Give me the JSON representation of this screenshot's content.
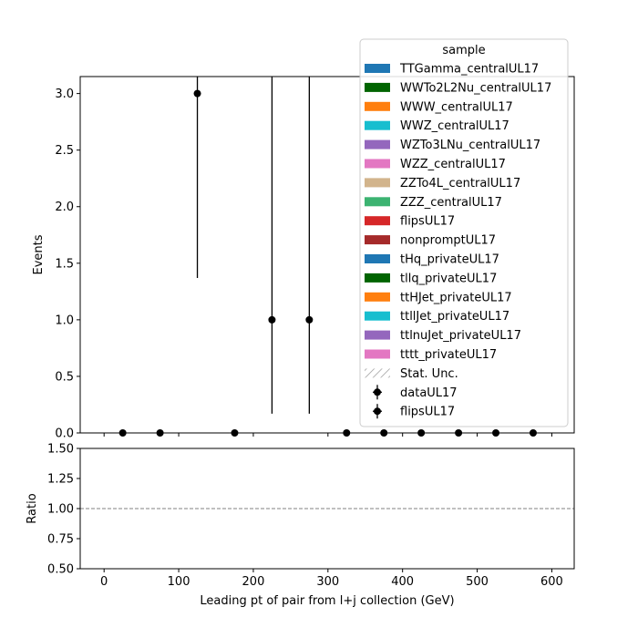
{
  "chart_data": [
    {
      "type": "scatter",
      "panel": "main",
      "xlabel": "",
      "ylabel": "Events",
      "xlim": [
        -32,
        630
      ],
      "ylim": [
        0,
        3.15
      ],
      "yticks": [
        0.0,
        0.5,
        1.0,
        1.5,
        2.0,
        2.5,
        3.0
      ],
      "ytick_labels": [
        "0.0",
        "0.5",
        "1.0",
        "1.5",
        "2.0",
        "2.5",
        "3.0"
      ],
      "xticks": [
        0,
        100,
        200,
        300,
        400,
        500,
        600
      ],
      "grid": false,
      "legend": {
        "title": "sample",
        "placement": "top-right",
        "entries": [
          {
            "label": "TTGamma_centralUL17",
            "kind": "patch",
            "color": "#1f77b4"
          },
          {
            "label": "WWTo2L2Nu_centralUL17",
            "kind": "patch",
            "color": "#006400"
          },
          {
            "label": "WWW_centralUL17",
            "kind": "patch",
            "color": "#ff7f0e"
          },
          {
            "label": "WWZ_centralUL17",
            "kind": "patch",
            "color": "#17becf"
          },
          {
            "label": "WZTo3LNu_centralUL17",
            "kind": "patch",
            "color": "#9467bd"
          },
          {
            "label": "WZZ_centralUL17",
            "kind": "patch",
            "color": "#e377c2"
          },
          {
            "label": "ZZTo4L_centralUL17",
            "kind": "patch",
            "color": "#d2b48c"
          },
          {
            "label": "ZZZ_centralUL17",
            "kind": "patch",
            "color": "#3cb371"
          },
          {
            "label": "flipsUL17",
            "kind": "patch",
            "color": "#d62728"
          },
          {
            "label": "nonpromptUL17",
            "kind": "patch",
            "color": "#a52a2a"
          },
          {
            "label": "tHq_privateUL17",
            "kind": "patch",
            "color": "#1f77b4"
          },
          {
            "label": "tllq_privateUL17",
            "kind": "patch",
            "color": "#006400"
          },
          {
            "label": "ttHJet_privateUL17",
            "kind": "patch",
            "color": "#ff7f0e"
          },
          {
            "label": "ttllJet_privateUL17",
            "kind": "patch",
            "color": "#17becf"
          },
          {
            "label": "ttlnuJet_privateUL17",
            "kind": "patch",
            "color": "#9467bd"
          },
          {
            "label": "tttt_privateUL17",
            "kind": "patch",
            "color": "#e377c2"
          },
          {
            "label": "Stat. Unc.",
            "kind": "hatch",
            "color": "#999999"
          },
          {
            "label": "dataUL17",
            "kind": "errorbar",
            "color": "#000000"
          },
          {
            "label": "flipsUL17",
            "kind": "errorbar",
            "color": "#000000"
          }
        ]
      },
      "series": [
        {
          "name": "dataUL17",
          "x": [
            25,
            75,
            125,
            175,
            225,
            275,
            325,
            375,
            425,
            475,
            525,
            575
          ],
          "y": [
            0,
            0,
            3,
            0,
            1,
            1,
            0,
            0,
            0,
            0,
            0,
            0
          ],
          "yerr_low": [
            0,
            0,
            1.63,
            0,
            0.83,
            0.83,
            0,
            0,
            0,
            0,
            0,
            0
          ],
          "yerr_high": [
            0,
            0,
            2.92,
            0,
            2.3,
            2.3,
            0,
            0,
            0,
            0,
            0,
            0
          ]
        }
      ]
    },
    {
      "type": "line",
      "panel": "ratio",
      "xlabel": "Leading pt of pair from l+j collection (GeV)",
      "ylabel": "Ratio",
      "xlim": [
        -32,
        630
      ],
      "ylim": [
        0.5,
        1.5
      ],
      "xticks": [
        0,
        100,
        200,
        300,
        400,
        500,
        600
      ],
      "xtick_labels": [
        "0",
        "100",
        "200",
        "300",
        "400",
        "500",
        "600"
      ],
      "yticks": [
        0.5,
        0.75,
        1.0,
        1.25,
        1.5
      ],
      "ytick_labels": [
        "0.50",
        "0.75",
        "1.00",
        "1.25",
        "1.50"
      ],
      "reference_line": {
        "y": 1.0,
        "style": "dashed",
        "color": "#808080"
      },
      "grid": false
    }
  ]
}
